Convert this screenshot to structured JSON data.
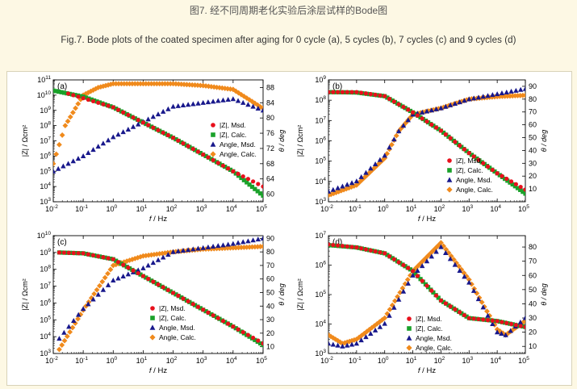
{
  "caption": {
    "cn": "图7. 经不同周期老化实验后涂层试样的Bode图",
    "en": "Fig.7. Bode plots of the coated specimen after aging for 0 cycle (a), 5 cycles (b), 7 cycles (c) and 9 cycles (d)"
  },
  "colors": {
    "z_msd": "#e8101c",
    "z_calc": "#1aa12a",
    "angle_msd": "#18188c",
    "angle_calc": "#f08a1c"
  },
  "legend_labels": [
    "|Z|, Msd.",
    "|Z|, Calc.",
    "Angle, Msd.",
    "Angle, Calc."
  ],
  "chart_data": [
    {
      "type": "scatter",
      "panel": "(a)",
      "xlabel": "f / Hz",
      "ylabel": "|Z| / Ωcm²",
      "y2label": "θ / deg",
      "x_log": true,
      "xlim_exp": [
        -2,
        5
      ],
      "y_log": true,
      "ylim_exp": [
        3,
        11
      ],
      "y2lim": [
        58,
        90
      ],
      "y2ticks": [
        60,
        64,
        68,
        72,
        76,
        80,
        84,
        88
      ],
      "legend_position": "middle-right",
      "series": [
        {
          "name": "|Z|, Msd.",
          "axis": "left",
          "points": [
            [
              -1.5,
              10.1
            ],
            [
              0,
              9.2
            ],
            [
              1,
              8.2
            ],
            [
              2,
              7.2
            ],
            [
              3,
              6.1
            ],
            [
              4,
              5.0
            ],
            [
              5,
              4.0
            ]
          ]
        },
        {
          "name": "|Z|, Calc.",
          "axis": "left",
          "points": [
            [
              -2,
              10.3
            ],
            [
              -1,
              9.9
            ],
            [
              0,
              9.2
            ],
            [
              1,
              8.2
            ],
            [
              2,
              7.2
            ],
            [
              3,
              6.1
            ],
            [
              4,
              5.0
            ],
            [
              5,
              3.4
            ]
          ]
        },
        {
          "name": "Angle, Msd.",
          "axis": "right",
          "points": [
            [
              -2,
              66
            ],
            [
              -1,
              70
            ],
            [
              0,
              75
            ],
            [
              1,
              79
            ],
            [
              2,
              83
            ],
            [
              3,
              84
            ],
            [
              4,
              85
            ],
            [
              5,
              82
            ]
          ]
        },
        {
          "name": "Angle, Calc.",
          "axis": "right",
          "points": [
            [
              -2,
              68
            ],
            [
              -1.6,
              78
            ],
            [
              -1,
              86
            ],
            [
              -0.5,
              88
            ],
            [
              0,
              89
            ],
            [
              1,
              89
            ],
            [
              2,
              89
            ],
            [
              3,
              88.5
            ],
            [
              4,
              87.5
            ],
            [
              5,
              82.5
            ]
          ]
        }
      ]
    },
    {
      "type": "scatter",
      "panel": "(b)",
      "xlabel": "f / Hz",
      "ylabel": "|Z| / Ωcm²",
      "y2label": "θ / deg",
      "x_log": true,
      "xlim_exp": [
        -2,
        5
      ],
      "y_log": true,
      "ylim_exp": [
        3,
        9
      ],
      "y2lim": [
        0,
        95
      ],
      "y2ticks": [
        10,
        20,
        30,
        40,
        50,
        60,
        70,
        80,
        90
      ],
      "legend_position": "bottom-right",
      "series": [
        {
          "name": "|Z|, Msd.",
          "axis": "left",
          "points": [
            [
              -2,
              8.4
            ],
            [
              -1,
              8.4
            ],
            [
              0,
              8.2
            ],
            [
              1,
              7.4
            ],
            [
              2,
              6.5
            ],
            [
              3,
              5.4
            ],
            [
              4,
              4.4
            ],
            [
              5,
              3.6
            ]
          ]
        },
        {
          "name": "|Z|, Calc.",
          "axis": "left",
          "points": [
            [
              -2,
              8.4
            ],
            [
              -1,
              8.38
            ],
            [
              0,
              8.2
            ],
            [
              1,
              7.4
            ],
            [
              2,
              6.5
            ],
            [
              3,
              5.4
            ],
            [
              4,
              4.4
            ],
            [
              5,
              3.4
            ]
          ]
        },
        {
          "name": "Angle, Msd.",
          "axis": "right",
          "points": [
            [
              -2,
              8
            ],
            [
              -1,
              16
            ],
            [
              0,
              36
            ],
            [
              0.5,
              55
            ],
            [
              1,
              68
            ],
            [
              2,
              73
            ],
            [
              3,
              80
            ],
            [
              4,
              84
            ],
            [
              5,
              88
            ]
          ]
        },
        {
          "name": "Angle, Calc.",
          "axis": "right",
          "points": [
            [
              -2,
              5
            ],
            [
              -1,
              13
            ],
            [
              0,
              34
            ],
            [
              0.5,
              55
            ],
            [
              1,
              68
            ],
            [
              2,
              73
            ],
            [
              3,
              80
            ],
            [
              4,
              82
            ],
            [
              5,
              83
            ]
          ]
        }
      ]
    },
    {
      "type": "scatter",
      "panel": "(c)",
      "xlabel": "f / Hz",
      "ylabel": "|Z| / Ωcm²",
      "y2label": "θ / deg",
      "x_log": true,
      "xlim_exp": [
        -2,
        5
      ],
      "y_log": true,
      "ylim_exp": [
        3,
        10
      ],
      "y2lim": [
        5,
        92
      ],
      "y2ticks": [
        10,
        20,
        30,
        40,
        50,
        60,
        70,
        80,
        90
      ],
      "legend_position": "bottom-right",
      "series": [
        {
          "name": "|Z|, Msd.",
          "axis": "left",
          "points": [
            [
              -1.8,
              9.0
            ],
            [
              -1,
              8.95
            ],
            [
              0,
              8.6
            ],
            [
              1,
              7.6
            ],
            [
              2,
              6.6
            ],
            [
              3,
              5.6
            ],
            [
              4,
              4.6
            ],
            [
              5,
              3.6
            ]
          ]
        },
        {
          "name": "|Z|, Calc.",
          "axis": "left",
          "points": [
            [
              -1.8,
              9.0
            ],
            [
              -1,
              8.95
            ],
            [
              0,
              8.6
            ],
            [
              1,
              7.6
            ],
            [
              2,
              6.6
            ],
            [
              3,
              5.6
            ],
            [
              4,
              4.6
            ],
            [
              5,
              3.5
            ]
          ]
        },
        {
          "name": "Angle, Msd.",
          "axis": "right",
          "points": [
            [
              -1.8,
              16
            ],
            [
              -1,
              38
            ],
            [
              0,
              59
            ],
            [
              1,
              68
            ],
            [
              2,
              80
            ],
            [
              3,
              83
            ],
            [
              4,
              86
            ],
            [
              5,
              90
            ]
          ]
        },
        {
          "name": "Angle, Calc.",
          "axis": "right",
          "points": [
            [
              -1.8,
              8
            ],
            [
              -1,
              37
            ],
            [
              0,
              70
            ],
            [
              1,
              77
            ],
            [
              2,
              80
            ],
            [
              3,
              82
            ],
            [
              4,
              83
            ],
            [
              5,
              84
            ]
          ]
        }
      ]
    },
    {
      "type": "scatter",
      "panel": "(d)",
      "xlabel": "f / Hz",
      "ylabel": "|Z| / Ωcm²",
      "y2label": "θ / deg",
      "x_log": true,
      "xlim_exp": [
        -2,
        5
      ],
      "y_log": true,
      "ylim_exp": [
        3,
        7
      ],
      "y2lim": [
        5,
        88
      ],
      "y2ticks": [
        10,
        20,
        30,
        40,
        50,
        60,
        70,
        80
      ],
      "legend_position": "bottom-center",
      "series": [
        {
          "name": "|Z|, Msd.",
          "axis": "left",
          "points": [
            [
              -2,
              6.7
            ],
            [
              -1,
              6.6
            ],
            [
              0,
              6.4
            ],
            [
              1,
              5.8
            ],
            [
              2,
              4.8
            ],
            [
              3,
              4.2
            ],
            [
              4,
              4.1
            ],
            [
              5,
              3.9
            ]
          ]
        },
        {
          "name": "|Z|, Calc.",
          "axis": "left",
          "points": [
            [
              -2,
              6.68
            ],
            [
              -1,
              6.6
            ],
            [
              0,
              6.4
            ],
            [
              1,
              5.8
            ],
            [
              2,
              4.8
            ],
            [
              3,
              4.2
            ],
            [
              4,
              4.1
            ],
            [
              5,
              3.9
            ]
          ]
        },
        {
          "name": "Angle, Msd.",
          "axis": "right",
          "points": [
            [
              -2,
              12
            ],
            [
              -1.5,
              10
            ],
            [
              -1,
              12
            ],
            [
              0,
              26
            ],
            [
              1,
              60
            ],
            [
              2,
              80
            ],
            [
              3,
              55
            ],
            [
              4,
              20
            ],
            [
              4.3,
              18
            ],
            [
              5,
              30
            ]
          ]
        },
        {
          "name": "Angle, Calc.",
          "axis": "right",
          "points": [
            [
              -2,
              18
            ],
            [
              -1.5,
              12
            ],
            [
              -1,
              15
            ],
            [
              0,
              30
            ],
            [
              1,
              63
            ],
            [
              2,
              83
            ],
            [
              3,
              57
            ],
            [
              4,
              22
            ],
            [
              4.3,
              18
            ],
            [
              5,
              28
            ]
          ]
        }
      ]
    }
  ]
}
